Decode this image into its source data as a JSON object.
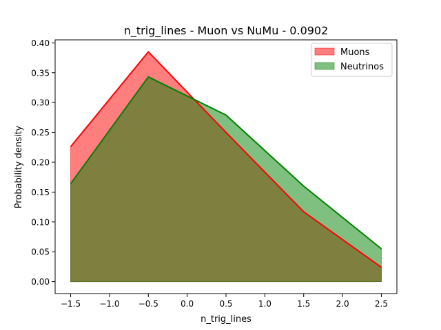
{
  "chart_data": {
    "type": "area",
    "title": "n_trig_lines - Muon vs NuMu - 0.0902",
    "xlabel": "n_trig_lines",
    "ylabel": "Probability density",
    "xlim": [
      -1.7,
      2.7
    ],
    "ylim": [
      -0.02,
      0.405
    ],
    "x": [
      -1.5,
      -0.5,
      0.5,
      1.5,
      2.5
    ],
    "x_ticks": [
      -1.5,
      -1.0,
      -0.5,
      0.0,
      0.5,
      1.0,
      1.5,
      2.0,
      2.5
    ],
    "x_tick_labels": [
      "−1.5",
      "−1.0",
      "−0.5",
      "0.0",
      "0.5",
      "1.0",
      "1.5",
      "2.0",
      "2.5"
    ],
    "y_ticks": [
      0.0,
      0.05,
      0.1,
      0.15,
      0.2,
      0.25,
      0.3,
      0.35,
      0.4
    ],
    "y_tick_labels": [
      "0.00",
      "0.05",
      "0.10",
      "0.15",
      "0.20",
      "0.25",
      "0.30",
      "0.35",
      "0.40"
    ],
    "grid": false,
    "legend_position": "top-right",
    "series": [
      {
        "name": "Muons",
        "values": [
          0.226,
          0.385,
          0.25,
          0.117,
          0.024
        ],
        "line_color": "#ff0000",
        "fill_color": "#ff0000",
        "fill_alpha": 0.5
      },
      {
        "name": "Neutrinos",
        "values": [
          0.164,
          0.343,
          0.279,
          0.16,
          0.055
        ],
        "line_color": "#008000",
        "fill_color": "#008000",
        "fill_alpha": 0.5
      }
    ]
  }
}
